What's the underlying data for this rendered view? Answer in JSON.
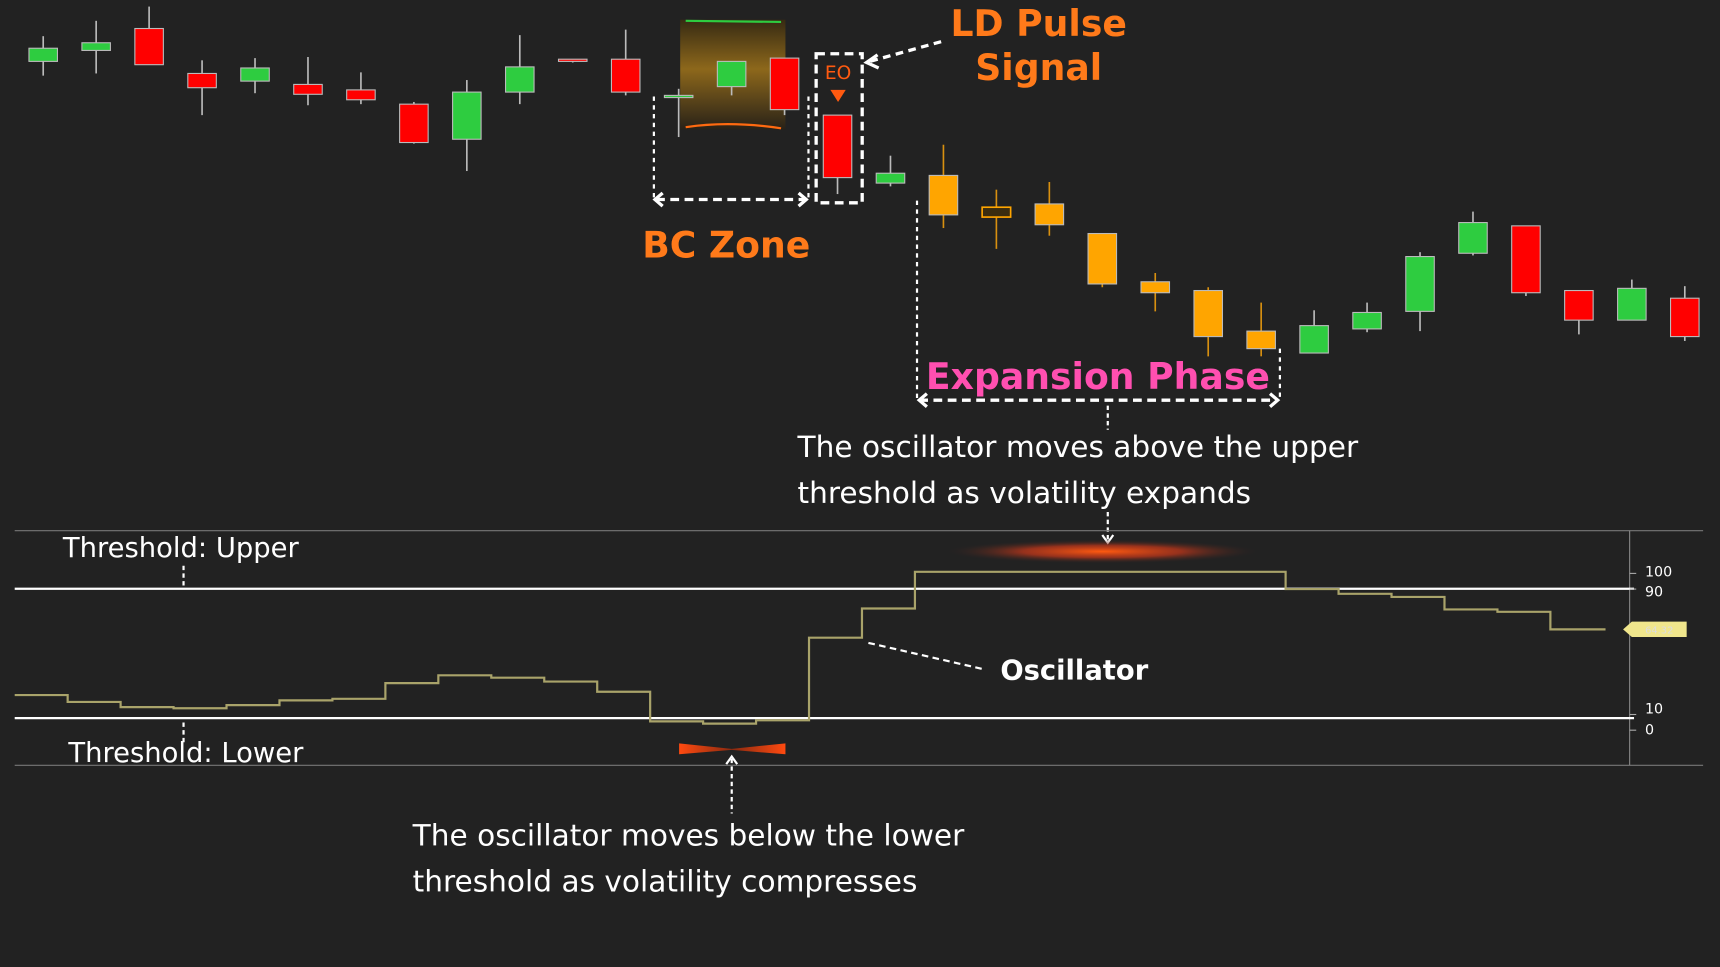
{
  "colors": {
    "background": "#222222",
    "up": "#2ecc40",
    "down": "#ff0000",
    "expansion": "#ffa500",
    "oscillator": "#a9a36a",
    "threshold": "#ffffff",
    "accent_orange": "#ff7a1a",
    "accent_pink": "#ff4fb0",
    "last_value_tag": "#f0e68c"
  },
  "annotations": {
    "ld_pulse_line1": "LD Pulse",
    "ld_pulse_line2": "Signal",
    "bc_zone": "BC Zone",
    "eo_marker": "EO",
    "expansion_phase": "Expansion Phase",
    "upper_note_line1": "The oscillator moves above the upper",
    "upper_note_line2": "threshold as volatility expands",
    "lower_note_line1": "The oscillator moves below the lower",
    "lower_note_line2": "threshold as volatility compresses",
    "oscillator_label": "Oscillator",
    "threshold_upper": "Threshold: Upper",
    "threshold_lower": "Threshold: Lower"
  },
  "chart_data": [
    {
      "type": "candlestick",
      "title": "",
      "candles": [
        {
          "o": 344,
          "h": 367,
          "l": 331,
          "c": 356,
          "state": "up"
        },
        {
          "o": 354,
          "h": 381,
          "l": 333,
          "c": 361,
          "state": "up"
        },
        {
          "o": 374,
          "h": 394,
          "l": 341,
          "c": 341,
          "state": "down"
        },
        {
          "o": 333,
          "h": 345,
          "l": 295,
          "c": 320,
          "state": "down"
        },
        {
          "o": 326,
          "h": 347,
          "l": 315,
          "c": 338,
          "state": "up"
        },
        {
          "o": 323,
          "h": 348,
          "l": 304,
          "c": 314,
          "state": "down"
        },
        {
          "o": 318,
          "h": 334,
          "l": 305,
          "c": 309,
          "state": "down"
        },
        {
          "o": 305,
          "h": 307,
          "l": 269,
          "c": 270,
          "state": "down"
        },
        {
          "o": 273,
          "h": 327,
          "l": 244,
          "c": 316,
          "state": "up"
        },
        {
          "o": 316,
          "h": 368,
          "l": 305,
          "c": 339,
          "state": "up"
        },
        {
          "o": 346,
          "h": 346,
          "l": 343,
          "c": 344,
          "state": "down"
        },
        {
          "o": 346,
          "h": 373,
          "l": 313,
          "c": 316,
          "state": "down"
        },
        {
          "o": 311,
          "h": 319,
          "l": 275,
          "c": 313,
          "state": "up"
        },
        {
          "o": 321,
          "h": 344,
          "l": 313,
          "c": 344,
          "state": "up"
        },
        {
          "o": 347,
          "h": 347,
          "l": 295,
          "c": 300,
          "state": "down"
        },
        {
          "o": 295,
          "h": 295,
          "l": 223,
          "c": 238,
          "state": "down"
        },
        {
          "o": 233,
          "h": 258,
          "l": 230,
          "c": 242,
          "state": "up"
        },
        {
          "o": 240,
          "h": 268,
          "l": 192,
          "c": 204,
          "state": "expansion"
        },
        {
          "o": 211,
          "h": 227,
          "l": 173,
          "c": 202,
          "state": "expansion-hollow"
        },
        {
          "o": 214,
          "h": 234,
          "l": 185,
          "c": 195,
          "state": "expansion"
        },
        {
          "o": 187,
          "h": 187,
          "l": 138,
          "c": 141,
          "state": "expansion"
        },
        {
          "o": 143,
          "h": 151,
          "l": 116,
          "c": 133,
          "state": "expansion"
        },
        {
          "o": 135,
          "h": 138,
          "l": 75,
          "c": 93,
          "state": "expansion"
        },
        {
          "o": 98,
          "h": 124,
          "l": 75,
          "c": 82,
          "state": "expansion"
        },
        {
          "o": 78,
          "h": 117,
          "l": 78,
          "c": 103,
          "state": "up"
        },
        {
          "o": 100,
          "h": 124,
          "l": 97,
          "c": 115,
          "state": "up"
        },
        {
          "o": 116,
          "h": 170,
          "l": 98,
          "c": 166,
          "state": "up"
        },
        {
          "o": 169,
          "h": 207,
          "l": 167,
          "c": 197,
          "state": "up"
        },
        {
          "o": 194,
          "h": 194,
          "l": 130,
          "c": 133,
          "state": "down"
        },
        {
          "o": 135,
          "h": 135,
          "l": 95,
          "c": 108,
          "state": "down"
        },
        {
          "o": 108,
          "h": 145,
          "l": 108,
          "c": 137,
          "state": "up"
        },
        {
          "o": 128,
          "h": 139,
          "l": 89,
          "c": 93,
          "state": "down"
        }
      ]
    },
    {
      "type": "line",
      "step": true,
      "title": "",
      "y_ticks": [
        "100",
        "90",
        "10",
        "0"
      ],
      "ylim": [
        0,
        100
      ],
      "thresholds": {
        "upper": 90,
        "lower": 10
      },
      "last_value": "64.32",
      "values": [
        22.4,
        18,
        14.7,
        14,
        16,
        19,
        20,
        30,
        35,
        33.5,
        31,
        24.5,
        5.6,
        4.2,
        6.3,
        59,
        77.6,
        101,
        101,
        101,
        101,
        101,
        101,
        101,
        90,
        87,
        85,
        77,
        75.5,
        64.32
      ]
    }
  ]
}
